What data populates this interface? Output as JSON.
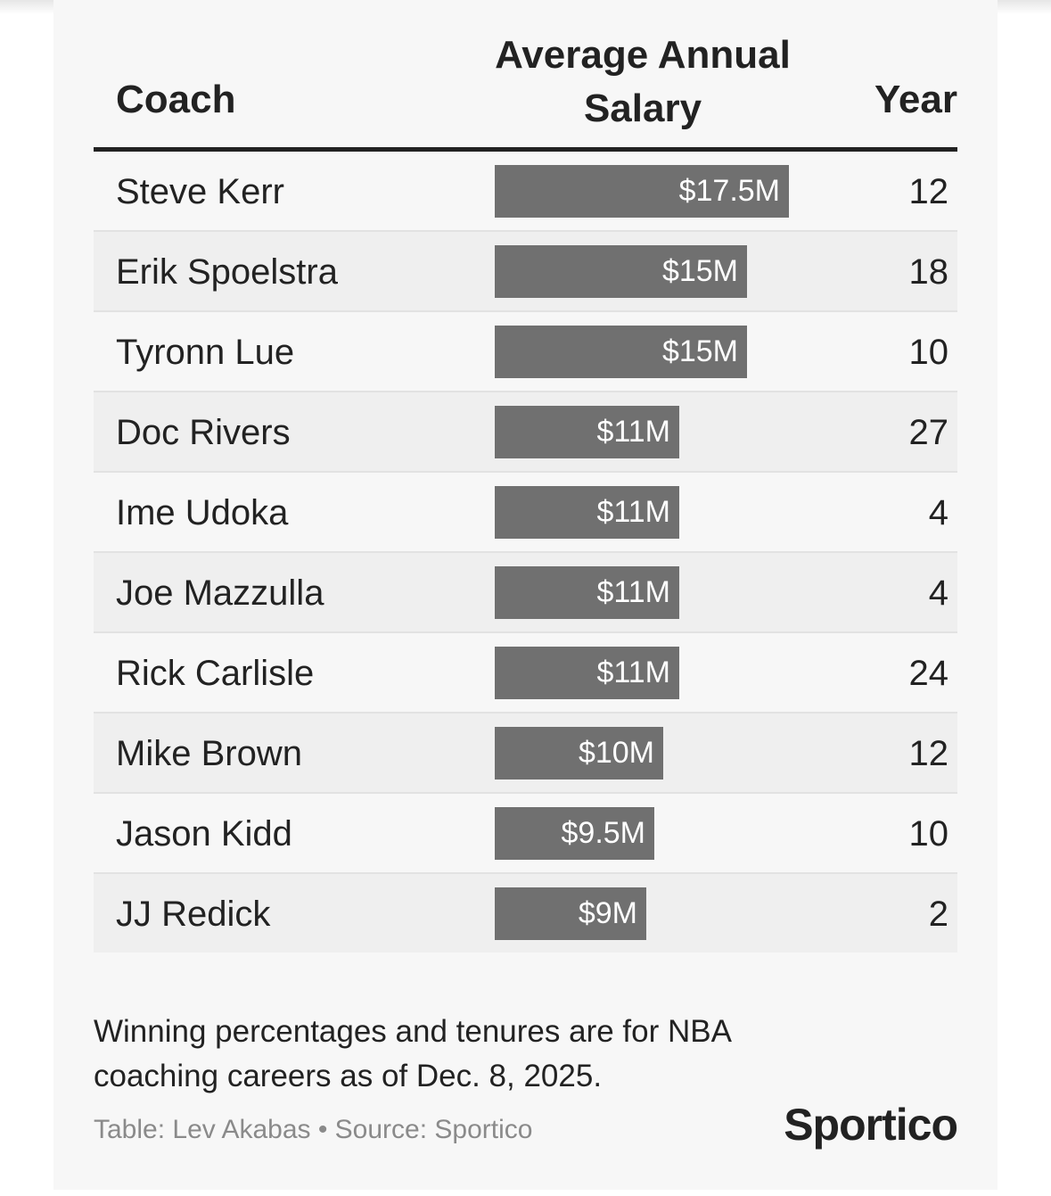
{
  "chart_data": {
    "type": "table",
    "columns": [
      "Coach",
      "Average Annual Salary",
      "Year"
    ],
    "header": {
      "coach": "Coach",
      "salary": "Average Annual Salary",
      "year": "Year"
    },
    "rows": [
      {
        "coach": "Steve Kerr",
        "salary": 17.5,
        "salary_label": "$17.5M",
        "years": "12"
      },
      {
        "coach": "Erik Spoelstra",
        "salary": 15,
        "salary_label": "$15M",
        "years": "18"
      },
      {
        "coach": "Tyronn Lue",
        "salary": 15,
        "salary_label": "$15M",
        "years": "10"
      },
      {
        "coach": "Doc Rivers",
        "salary": 11,
        "salary_label": "$11M",
        "years": "27"
      },
      {
        "coach": "Ime Udoka",
        "salary": 11,
        "salary_label": "$11M",
        "years": "4"
      },
      {
        "coach": "Joe Mazzulla",
        "salary": 11,
        "salary_label": "$11M",
        "years": "4"
      },
      {
        "coach": "Rick Carlisle",
        "salary": 11,
        "salary_label": "$11M",
        "years": "24"
      },
      {
        "coach": "Mike Brown",
        "salary": 10,
        "salary_label": "$10M",
        "years": "12"
      },
      {
        "coach": "Jason Kidd",
        "salary": 9.5,
        "salary_label": "$9.5M",
        "years": "10"
      },
      {
        "coach": "JJ Redick",
        "salary": 9,
        "salary_label": "$9M",
        "years": "2"
      }
    ],
    "bar_color": "#707070"
  },
  "footer": {
    "note": "Winning percentages and tenures are for NBA coaching careers as of Dec. 8, 2025.",
    "credit": "Table: Lev Akabas • Source: Sportico",
    "logo": "Sportico"
  }
}
